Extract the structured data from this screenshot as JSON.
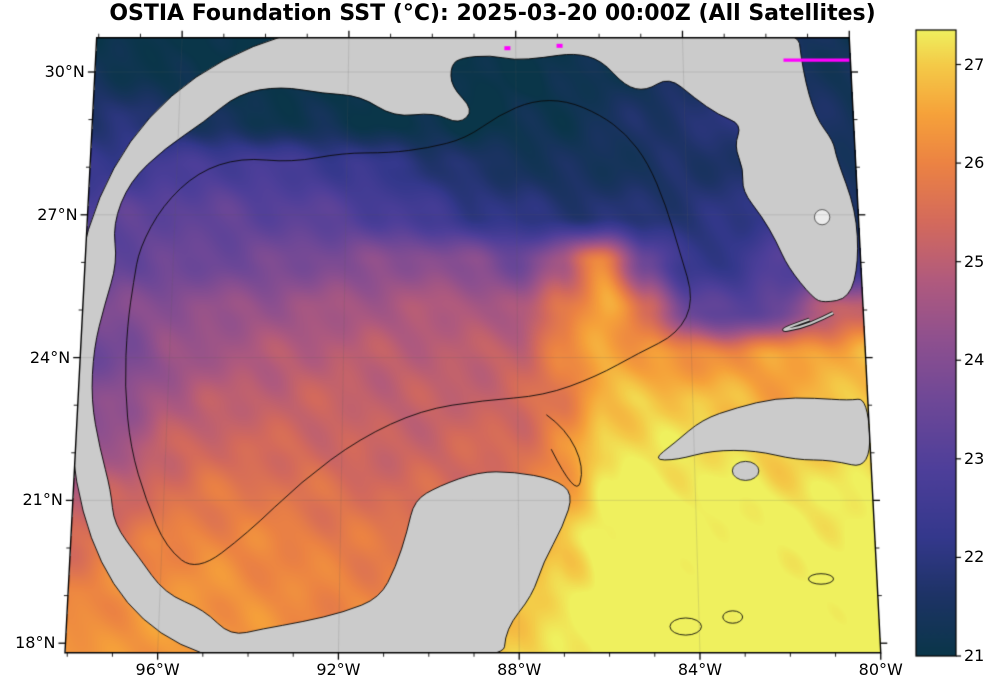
{
  "title": "OSTIA Foundation SST (°C): 2025-03-20 00:00Z (All Satellites)",
  "chart_data": {
    "type": "heatmap",
    "variable": "Sea surface temperature (°C)",
    "datetime_label": "2025-03-20 00:00Z",
    "source_label": "All Satellites",
    "axes": {
      "lon_range": [
        -98.05,
        -80.0
      ],
      "lat_range": [
        17.8,
        30.72
      ],
      "lat_ticks": [
        {
          "value": 30,
          "label": "30°N"
        },
        {
          "value": 27,
          "label": "27°N"
        },
        {
          "value": 24,
          "label": "24°N"
        },
        {
          "value": 21,
          "label": "21°N"
        },
        {
          "value": 18,
          "label": "18°N"
        }
      ],
      "lon_ticks": [
        {
          "value": -96,
          "label": "96°W"
        },
        {
          "value": -92,
          "label": "92°W"
        },
        {
          "value": -88,
          "label": "88°W"
        },
        {
          "value": -84,
          "label": "84°W"
        },
        {
          "value": -80,
          "label": "80°W"
        }
      ]
    },
    "colorbar": {
      "min": 21,
      "max": 27.35,
      "tick_values": [
        21,
        22,
        23,
        24,
        25,
        26,
        27
      ],
      "tick_labels": [
        "21",
        "22",
        "23",
        "24",
        "25",
        "26",
        "27"
      ]
    },
    "colormap_stops": [
      [
        21.0,
        "#0a3649"
      ],
      [
        21.6,
        "#1d3365"
      ],
      [
        22.2,
        "#34388c"
      ],
      [
        22.9,
        "#4e3f9a"
      ],
      [
        23.6,
        "#6f4897"
      ],
      [
        24.2,
        "#8e508f"
      ],
      [
        24.8,
        "#b05a7e"
      ],
      [
        25.4,
        "#d46a5c"
      ],
      [
        26.0,
        "#ec8343"
      ],
      [
        26.5,
        "#f6a23a"
      ],
      [
        27.0,
        "#f4cb48"
      ],
      [
        27.35,
        "#eff05e"
      ]
    ],
    "sst_grid": {
      "lon_start": -98,
      "lon_step": 1,
      "lat_start": 31,
      "lat_step": -1,
      "values": [
        [
          21.0,
          21.0,
          21.0,
          21.0,
          21.0,
          21.0,
          21.0,
          21.0,
          21.0,
          21.0,
          21.0,
          21.1,
          21.2,
          21.3,
          21.5,
          21.8,
          21.8,
          21.4,
          21.2
        ],
        [
          21.3,
          21.2,
          21.0,
          21.0,
          21.0,
          21.0,
          21.0,
          21.0,
          21.0,
          21.0,
          21.0,
          21.1,
          21.2,
          21.3,
          21.5,
          21.8,
          21.9,
          21.5,
          21.3
        ],
        [
          21.8,
          21.8,
          21.5,
          21.3,
          21.2,
          21.2,
          21.1,
          21.0,
          21.0,
          21.0,
          21.1,
          21.2,
          21.4,
          21.6,
          21.8,
          21.9,
          22.0,
          21.6,
          21.4
        ],
        [
          22.2,
          22.5,
          22.7,
          22.8,
          22.7,
          22.6,
          22.4,
          22.2,
          21.9,
          21.6,
          21.5,
          21.4,
          21.4,
          21.5,
          21.6,
          21.7,
          21.8,
          21.8,
          21.4
        ],
        [
          23.0,
          23.2,
          23.3,
          23.3,
          23.2,
          23.2,
          23.0,
          22.8,
          22.5,
          22.2,
          22.0,
          21.9,
          21.8,
          21.8,
          21.9,
          22.0,
          22.2,
          22.0,
          21.6
        ],
        [
          23.2,
          23.4,
          23.5,
          23.6,
          23.7,
          23.8,
          24.0,
          24.1,
          24.2,
          24.0,
          23.6,
          24.6,
          26.2,
          23.5,
          22.2,
          22.3,
          23.0,
          22.3,
          22.0
        ],
        [
          23.8,
          24.0,
          24.2,
          24.3,
          24.4,
          24.5,
          24.6,
          24.7,
          24.8,
          24.8,
          24.6,
          25.8,
          26.6,
          25.5,
          23.5,
          23.0,
          23.5,
          24.8,
          25.3
        ],
        [
          23.5,
          23.8,
          24.3,
          24.6,
          24.8,
          24.9,
          25.0,
          25.0,
          25.0,
          25.0,
          25.2,
          26.0,
          26.6,
          26.4,
          26.2,
          26.3,
          26.5,
          26.6,
          26.8
        ],
        [
          24.0,
          24.2,
          24.8,
          25.0,
          25.1,
          25.2,
          25.2,
          25.1,
          25.1,
          25.2,
          25.3,
          25.8,
          26.8,
          27.0,
          27.0,
          26.8,
          26.5,
          26.8,
          27.0
        ],
        [
          24.5,
          24.6,
          25.2,
          25.4,
          25.4,
          25.4,
          25.3,
          25.2,
          25.3,
          25.4,
          25.5,
          26.2,
          27.2,
          27.3,
          27.2,
          27.2,
          27.0,
          27.0,
          27.2
        ],
        [
          25.0,
          25.2,
          25.6,
          25.8,
          25.8,
          25.7,
          25.6,
          25.5,
          25.5,
          25.4,
          25.5,
          26.5,
          27.4,
          27.5,
          27.4,
          27.4,
          27.3,
          27.3,
          27.4
        ],
        [
          25.5,
          25.8,
          26.0,
          26.1,
          26.1,
          26.0,
          25.9,
          25.8,
          25.8,
          25.8,
          26.0,
          27.0,
          27.5,
          27.6,
          27.5,
          27.5,
          27.4,
          27.4,
          27.5
        ],
        [
          26.0,
          26.2,
          26.3,
          26.3,
          26.2,
          26.1,
          26.0,
          26.0,
          26.0,
          26.2,
          27.0,
          27.2,
          27.6,
          27.6,
          27.6,
          27.5,
          27.5,
          27.5,
          27.6
        ],
        [
          26.3,
          26.3,
          26.4,
          26.4,
          26.3,
          26.2,
          26.1,
          26.1,
          26.2,
          26.5,
          27.0,
          27.3,
          27.6,
          27.6,
          27.6,
          27.6,
          27.6,
          27.6,
          27.6
        ]
      ]
    },
    "land": {
      "color": "#cbcbcb",
      "polygons": [
        [
          [
            -98.3,
            17.55
          ],
          [
            -98.3,
            31.2
          ],
          [
            -81.25,
            31.2
          ],
          [
            -81.15,
            30.0
          ],
          [
            -80.9,
            29.05
          ],
          [
            -80.5,
            28.55
          ],
          [
            -80.45,
            28.2
          ],
          [
            -80.05,
            27.1
          ],
          [
            -80.05,
            26.0
          ],
          [
            -80.3,
            25.25
          ],
          [
            -80.9,
            25.15
          ],
          [
            -81.15,
            25.25
          ],
          [
            -81.7,
            25.9
          ],
          [
            -81.95,
            26.45
          ],
          [
            -82.25,
            26.95
          ],
          [
            -82.7,
            27.5
          ],
          [
            -82.65,
            27.95
          ],
          [
            -82.85,
            28.45
          ],
          [
            -82.65,
            28.9
          ],
          [
            -83.2,
            29.1
          ],
          [
            -83.75,
            29.45
          ],
          [
            -84.35,
            29.9
          ],
          [
            -84.9,
            29.6
          ],
          [
            -85.4,
            29.7
          ],
          [
            -85.95,
            30.25
          ],
          [
            -86.6,
            30.4
          ],
          [
            -87.35,
            30.3
          ],
          [
            -88.05,
            30.25
          ],
          [
            -88.6,
            30.35
          ],
          [
            -89.3,
            30.3
          ],
          [
            -89.55,
            30.15
          ],
          [
            -89.55,
            29.7
          ],
          [
            -89.0,
            29.2
          ],
          [
            -89.35,
            28.9
          ],
          [
            -89.95,
            29.15
          ],
          [
            -90.9,
            29.05
          ],
          [
            -91.7,
            29.5
          ],
          [
            -92.6,
            29.55
          ],
          [
            -93.6,
            29.7
          ],
          [
            -94.6,
            29.55
          ],
          [
            -95.4,
            28.95
          ],
          [
            -96.3,
            28.4
          ],
          [
            -97.1,
            27.7
          ],
          [
            -97.45,
            26.8
          ],
          [
            -97.3,
            26.0
          ],
          [
            -97.55,
            25.1
          ],
          [
            -97.75,
            24.2
          ],
          [
            -97.75,
            23.1
          ],
          [
            -97.5,
            22.1
          ],
          [
            -97.2,
            21.2
          ],
          [
            -97.1,
            20.5
          ],
          [
            -96.5,
            19.8
          ],
          [
            -95.9,
            19.05
          ],
          [
            -95.0,
            18.7
          ],
          [
            -94.4,
            18.15
          ],
          [
            -93.7,
            18.3
          ],
          [
            -92.8,
            18.45
          ],
          [
            -91.9,
            18.65
          ],
          [
            -91.1,
            18.95
          ],
          [
            -90.75,
            19.6
          ],
          [
            -90.5,
            20.35
          ],
          [
            -90.35,
            21.0
          ],
          [
            -89.8,
            21.3
          ],
          [
            -88.9,
            21.6
          ],
          [
            -88.1,
            21.6
          ],
          [
            -87.2,
            21.45
          ],
          [
            -86.75,
            21.15
          ],
          [
            -87.0,
            20.45
          ],
          [
            -87.45,
            19.7
          ],
          [
            -87.7,
            19.0
          ],
          [
            -88.3,
            18.3
          ],
          [
            -88.35,
            17.55
          ]
        ],
        [
          [
            -84.95,
            21.85
          ],
          [
            -84.45,
            22.2
          ],
          [
            -83.8,
            22.7
          ],
          [
            -83.0,
            22.95
          ],
          [
            -82.1,
            23.15
          ],
          [
            -81.2,
            23.15
          ],
          [
            -80.45,
            23.1
          ],
          [
            -80.0,
            23.15
          ],
          [
            -80.0,
            21.65
          ],
          [
            -80.9,
            21.85
          ],
          [
            -81.7,
            21.85
          ],
          [
            -82.6,
            22.05
          ],
          [
            -83.6,
            22.05
          ],
          [
            -84.4,
            21.85
          ]
        ]
      ],
      "filled_islands": [
        {
          "c": [
            -82.85,
            21.62
          ],
          "rx": 0.3,
          "ry": 0.2
        }
      ],
      "lake": {
        "c": [
          -80.85,
          26.95
        ],
        "rx": 0.18,
        "ry": 0.16
      },
      "keys_line": [
        [
          -80.45,
          25.05
        ],
        [
          -80.95,
          24.82
        ],
        [
          -81.5,
          24.62
        ],
        [
          -82.05,
          24.55
        ]
      ]
    },
    "contours": [
      {
        "closed": true,
        "points": [
          [
            -96.8,
            26.3
          ],
          [
            -96.3,
            27.2
          ],
          [
            -95.5,
            27.9
          ],
          [
            -94.5,
            28.2
          ],
          [
            -93.3,
            28.1
          ],
          [
            -92.1,
            28.3
          ],
          [
            -91.0,
            28.3
          ],
          [
            -90.1,
            28.4
          ],
          [
            -89.2,
            28.6
          ],
          [
            -88.4,
            29.1
          ],
          [
            -87.6,
            29.4
          ],
          [
            -86.8,
            29.4
          ],
          [
            -86.0,
            29.1
          ],
          [
            -85.4,
            28.7
          ],
          [
            -84.9,
            28.1
          ],
          [
            -84.5,
            27.2
          ],
          [
            -84.2,
            26.2
          ],
          [
            -83.9,
            25.2
          ],
          [
            -84.3,
            24.5
          ],
          [
            -85.2,
            24.1
          ],
          [
            -86.2,
            23.6
          ],
          [
            -87.4,
            23.2
          ],
          [
            -88.8,
            23.1
          ],
          [
            -90.2,
            22.9
          ],
          [
            -91.6,
            22.3
          ],
          [
            -92.9,
            21.4
          ],
          [
            -94.1,
            20.3
          ],
          [
            -95.2,
            19.5
          ],
          [
            -95.9,
            20.0
          ],
          [
            -96.4,
            21.0
          ],
          [
            -96.8,
            22.1
          ],
          [
            -97.0,
            23.4
          ],
          [
            -97.0,
            24.7
          ],
          [
            -96.9,
            25.6
          ]
        ]
      },
      {
        "closed": false,
        "points": [
          [
            -87.8,
            23.1
          ],
          [
            -86.9,
            22.5
          ],
          [
            -86.5,
            21.7
          ],
          [
            -86.7,
            21.05
          ]
        ]
      }
    ],
    "outlined_islands": [
      {
        "c": [
          -84.3,
          18.35
        ],
        "rx": 0.35,
        "ry": 0.18
      },
      {
        "c": [
          -83.25,
          18.55
        ],
        "rx": 0.22,
        "ry": 0.13
      },
      {
        "c": [
          -81.25,
          19.35
        ],
        "rx": 0.28,
        "ry": 0.11
      }
    ],
    "missing_data_marks": {
      "color": "#ff00ff",
      "line": [
        [
          -81.6,
          30.25
        ],
        [
          -80.02,
          30.25
        ]
      ],
      "dots": [
        [
          -88.2,
          30.5
        ],
        [
          -86.95,
          30.55
        ]
      ]
    }
  }
}
